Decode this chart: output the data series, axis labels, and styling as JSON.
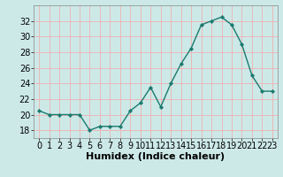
{
  "x": [
    0,
    1,
    2,
    3,
    4,
    5,
    6,
    7,
    8,
    9,
    10,
    11,
    12,
    13,
    14,
    15,
    16,
    17,
    18,
    19,
    20,
    21,
    22,
    23
  ],
  "y": [
    20.5,
    20.0,
    20.0,
    20.0,
    20.0,
    18.0,
    18.5,
    18.5,
    18.5,
    20.5,
    21.5,
    23.5,
    21.0,
    24.0,
    26.5,
    28.5,
    31.5,
    32.0,
    32.5,
    31.5,
    29.0,
    25.0,
    23.0,
    23.0
  ],
  "xlabel": "Humidex (Indice chaleur)",
  "ylim": [
    17,
    34
  ],
  "yticks": [
    18,
    20,
    22,
    24,
    26,
    28,
    30,
    32
  ],
  "bg_color": "#cce9e8",
  "line_color": "#1a7a6e",
  "marker_color": "#1a7a6e",
  "grid_color": "#f0b0b0",
  "xlabel_fontsize": 8,
  "tick_fontsize": 7
}
